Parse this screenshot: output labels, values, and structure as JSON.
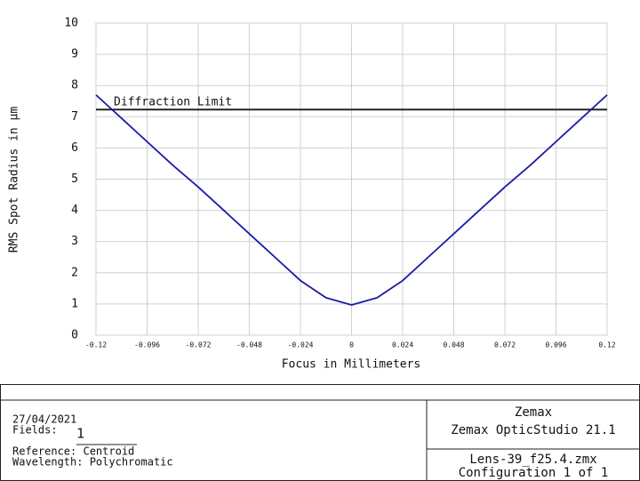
{
  "chart_data": {
    "type": "line",
    "xlabel": "Focus in Millimeters",
    "ylabel": "RMS Spot Radius in µm",
    "x": [
      -0.12,
      -0.108,
      -0.096,
      -0.084,
      -0.072,
      -0.06,
      -0.048,
      -0.036,
      -0.024,
      -0.012,
      0,
      0.012,
      0.024,
      0.036,
      0.048,
      0.06,
      0.072,
      0.084,
      0.096,
      0.108,
      0.12
    ],
    "series": [
      {
        "color": "#1a1aa8",
        "values": [
          7.7,
          6.95,
          6.2,
          5.45,
          4.75,
          4.0,
          3.25,
          2.5,
          1.75,
          1.2,
          0.97,
          1.2,
          1.75,
          2.5,
          3.25,
          4.0,
          4.75,
          5.45,
          6.2,
          6.95,
          7.7
        ]
      }
    ],
    "reference_line": {
      "label": "Diffraction Limit",
      "value": 7.23,
      "color": "#222222"
    },
    "xlim": [
      -0.12,
      0.12
    ],
    "xticks": [
      -0.12,
      -0.096,
      -0.072,
      -0.048,
      -0.024,
      0,
      0.024,
      0.048,
      0.072,
      0.096,
      0.12
    ],
    "ylim": [
      0,
      10
    ],
    "yticks": [
      0,
      1,
      2,
      3,
      4,
      5,
      6,
      7,
      8,
      9,
      10
    ],
    "grid": true
  },
  "footer": {
    "date": "27/04/2021",
    "fields_label": "Fields:",
    "fields_value": "1",
    "reference": "Reference: Centroid",
    "wavelength": "Wavelength: Polychromatic",
    "company": "Zemax",
    "product": "Zemax OpticStudio 21.1",
    "file": "Lens-39_f25.4.zmx",
    "configuration": "Configuration 1 of 1"
  }
}
